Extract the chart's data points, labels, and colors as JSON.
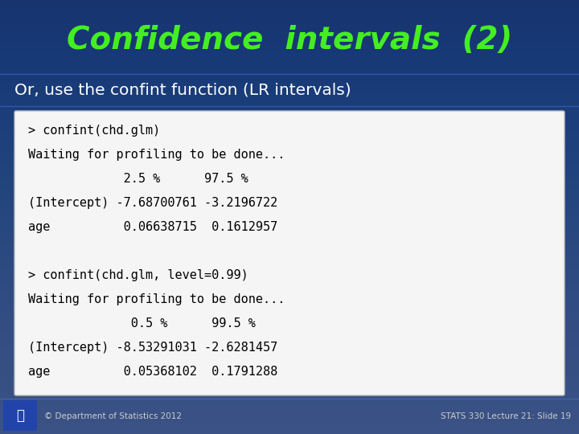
{
  "title": "Confidence  intervals  (2)",
  "subtitle": "Or, use the confint function (LR intervals)",
  "bg_color": "#1a3570",
  "title_color": "#44ee22",
  "subtitle_color": "#ffffff",
  "code_bg": "#f5f5f5",
  "code_color": "#000000",
  "footer_left": "© Department of Statistics 2012",
  "footer_right": "STATS 330 Lecture 21: Slide 19",
  "footer_color": "#cccccc",
  "code_line1": "> confint(chd.glm)",
  "code_line2": "Waiting for profiling to be done...",
  "code_line3": "             2.5 %      97.5 %",
  "code_line4": "(Intercept) -7.68700761 -3.2196722",
  "code_line5": "age          0.06638715  0.1612957",
  "code_line6": "",
  "code_line7": "> confint(chd.glm, level=0.99)",
  "code_line8": "Waiting for profiling to be done...",
  "code_line9": "              0.5 %      99.5 %",
  "code_line10": "(Intercept) -8.53291031 -2.6281457",
  "code_line11": "age          0.05368102  0.1791288"
}
